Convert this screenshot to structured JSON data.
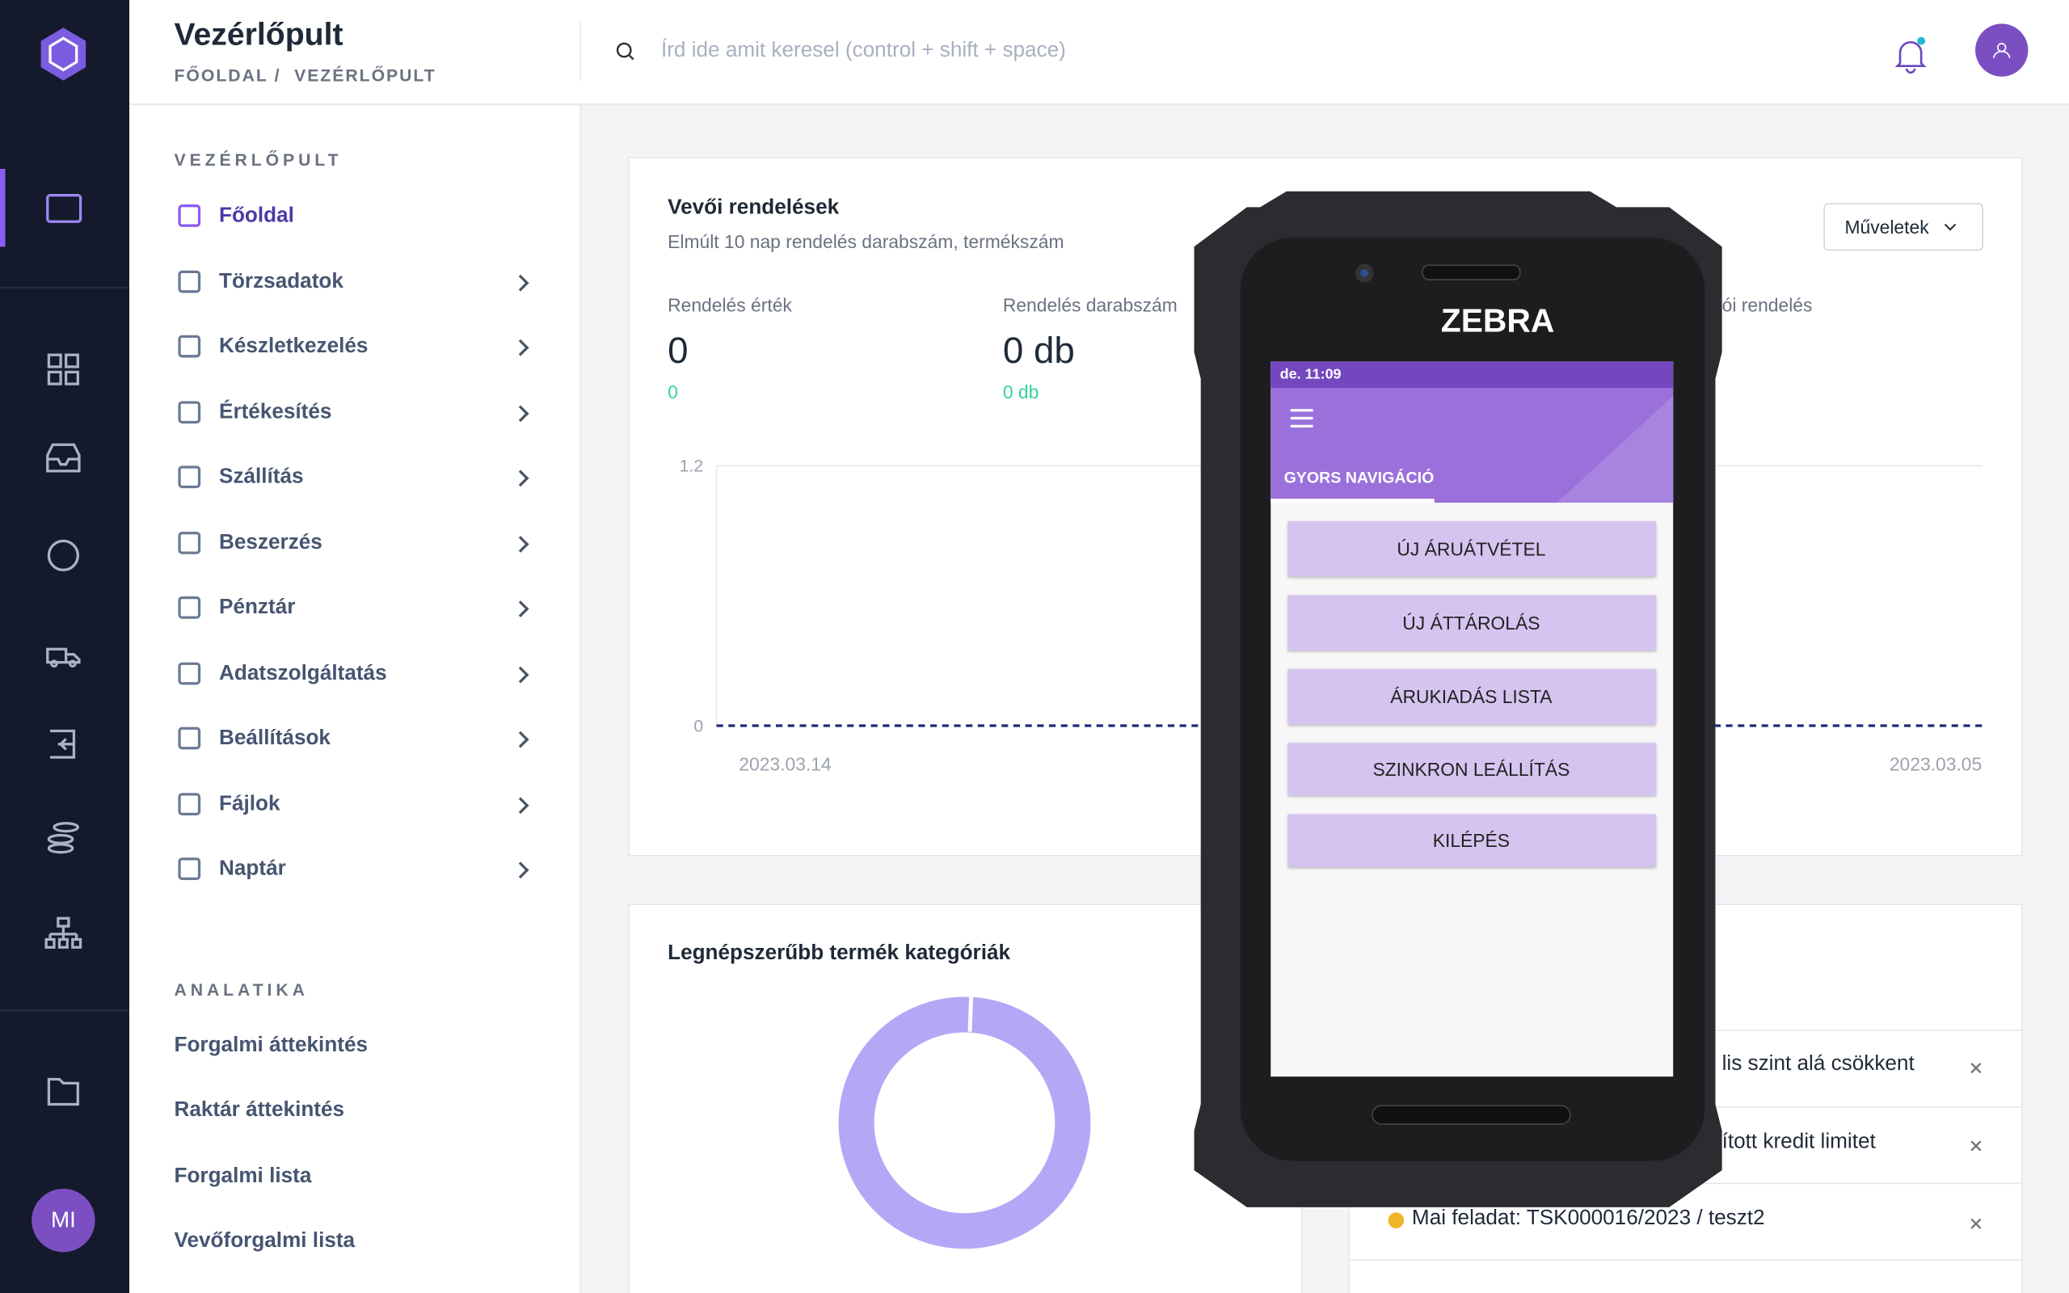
{
  "header": {
    "title": "Vezérlőpult",
    "breadcrumb": [
      "FŐOLDAL",
      "/",
      "VEZÉRLŐPULT"
    ],
    "search_placeholder": "Írd ide amit keresel (control + shift + space)"
  },
  "user": {
    "initials": "MI"
  },
  "sidebar": {
    "section": "VEZÉRLŐPULT",
    "items": [
      "Főoldal",
      "Törzsadatok",
      "Készletkezelés",
      "Értékesítés",
      "Szállítás",
      "Beszerzés",
      "Pénztár",
      "Adatszolgáltatás",
      "Beállítások",
      "Fájlok",
      "Naptár"
    ],
    "analytics_section": "ANALATIKA",
    "analytics_items": [
      "Forgalmi áttekintés",
      "Raktár áttekintés",
      "Forgalmi lista",
      "Vevőforgalmi lista"
    ]
  },
  "orders_card": {
    "title": "Vevői rendelések",
    "subtitle": "Elmúlt 10 nap rendelés darabszám, termékszám",
    "actions": "Műveletek",
    "stats": [
      {
        "label": "Rendelés érték",
        "value": "0",
        "delta": "0"
      },
      {
        "label": "Rendelés darabszám",
        "value": "0 db",
        "delta": "0 db"
      },
      {
        "label": "ói rendelés"
      }
    ],
    "y_labels": [
      "1.2",
      "0"
    ],
    "x_labels": [
      "2023.03.14",
      "2023.03.05"
    ]
  },
  "categories_card": {
    "title": "Legnépszerűbb termék kategóriák"
  },
  "notifications": [
    "lis szint alá csökkent",
    "ított kredit limitet",
    "Mai feladat: TSK000016/2023 / teszt2"
  ],
  "device": {
    "brand": "ZEBRA",
    "time": "de. 11:09",
    "tab": "GYORS NAVIGÁCIÓ",
    "buttons": [
      "ÚJ ÁRUÁTVÉTEL",
      "ÚJ ÁTTÁROLÁS",
      "ÁRUKIADÁS LISTA",
      "SZINKRON LEÁLLÍTÁS",
      "KILÉPÉS"
    ]
  }
}
